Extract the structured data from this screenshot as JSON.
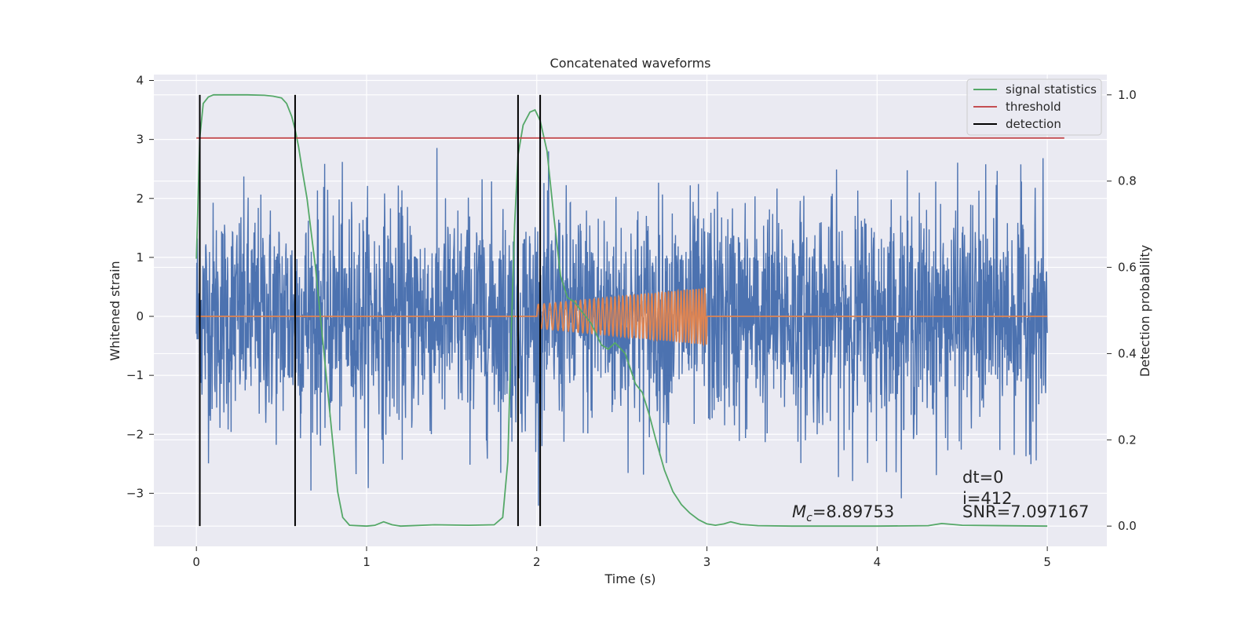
{
  "chart_data": {
    "type": "line",
    "title": "Concatenated waveforms",
    "xlabel": "Time (s)",
    "ylabel": "Whitened strain",
    "y2label": "Detection probability",
    "xlim": [
      -0.25,
      5.35
    ],
    "ylim": [
      -3.9,
      4.1
    ],
    "y2lim": [
      -0.047,
      1.047
    ],
    "xticks": [
      0,
      1,
      2,
      3,
      4,
      5
    ],
    "xtick_labels": [
      "0",
      "1",
      "2",
      "3",
      "4",
      "5"
    ],
    "yticks": [
      -3,
      -2,
      -1,
      0,
      1,
      2,
      3,
      4
    ],
    "ytick_labels": [
      "−3",
      "−2",
      "−1",
      "0",
      "1",
      "2",
      "3",
      "4"
    ],
    "y2ticks": [
      0.0,
      0.2,
      0.4,
      0.6,
      0.8,
      1.0
    ],
    "y2tick_labels": [
      "0.0",
      "0.2",
      "0.4",
      "0.6",
      "0.8",
      "1.0"
    ],
    "grid": true,
    "legend_position": "top-right",
    "series": [
      {
        "name": "strain",
        "axis": "left",
        "color": "#4c72b0",
        "kind": "noise",
        "x_range": [
          0,
          5
        ],
        "typical_extent": [
          -2.6,
          2.6
        ],
        "max": 3.75,
        "min": -3.6
      },
      {
        "name": "template",
        "axis": "left",
        "color": "#dd8452",
        "kind": "chirp",
        "x_range": [
          0,
          5
        ],
        "chirp_range": [
          2.0,
          3.0
        ],
        "amplitude_start": 0.2,
        "amplitude_end": 0.48
      },
      {
        "name": "signal statistics",
        "axis": "right",
        "color": "#55a868",
        "x": [
          0,
          0.02,
          0.04,
          0.07,
          0.1,
          0.2,
          0.3,
          0.4,
          0.45,
          0.5,
          0.53,
          0.56,
          0.58,
          0.6,
          0.62,
          0.65,
          0.7,
          0.75,
          0.8,
          0.83,
          0.86,
          0.9,
          1.0,
          1.05,
          1.1,
          1.15,
          1.2,
          1.4,
          1.6,
          1.75,
          1.8,
          1.83,
          1.85,
          1.87,
          1.89,
          1.92,
          1.96,
          1.99,
          2.02,
          2.06,
          2.1,
          2.14,
          2.18,
          2.22,
          2.26,
          2.32,
          2.38,
          2.42,
          2.46,
          2.52,
          2.58,
          2.62,
          2.66,
          2.7,
          2.75,
          2.8,
          2.85,
          2.9,
          2.95,
          3.0,
          3.05,
          3.1,
          3.14,
          3.2,
          3.3,
          3.5,
          4.0,
          4.3,
          4.38,
          4.5,
          5.0
        ],
        "y": [
          0.62,
          0.9,
          0.98,
          0.995,
          1.0,
          1.0,
          1.0,
          0.999,
          0.997,
          0.993,
          0.98,
          0.95,
          0.92,
          0.88,
          0.83,
          0.76,
          0.6,
          0.4,
          0.2,
          0.08,
          0.02,
          0.002,
          0.0,
          0.002,
          0.01,
          0.003,
          0.0,
          0.003,
          0.002,
          0.003,
          0.02,
          0.15,
          0.45,
          0.7,
          0.86,
          0.93,
          0.96,
          0.965,
          0.94,
          0.87,
          0.72,
          0.58,
          0.53,
          0.52,
          0.5,
          0.47,
          0.42,
          0.41,
          0.425,
          0.4,
          0.33,
          0.31,
          0.26,
          0.2,
          0.13,
          0.08,
          0.05,
          0.03,
          0.015,
          0.005,
          0.002,
          0.005,
          0.01,
          0.004,
          0.001,
          0.0,
          0.0,
          0.001,
          0.006,
          0.002,
          0.0
        ]
      },
      {
        "name": "threshold",
        "axis": "right",
        "color": "#c44e52",
        "x": [
          0,
          5.1
        ],
        "y": [
          0.9,
          0.9
        ]
      },
      {
        "name": "detection",
        "axis": "right",
        "color": "#000000",
        "kind": "vlines",
        "x": [
          0.02,
          0.58,
          1.89,
          2.02
        ],
        "y_range": [
          0.0,
          1.0
        ]
      }
    ],
    "legend": [
      "signal statistics",
      "threshold",
      "detection"
    ],
    "annotations": {
      "mc_symbol": "M",
      "mc_sub": "c",
      "mc_value": "=8.89753",
      "dt": "dt=0",
      "i": "i=412",
      "snr": "SNR=7.097167"
    }
  }
}
